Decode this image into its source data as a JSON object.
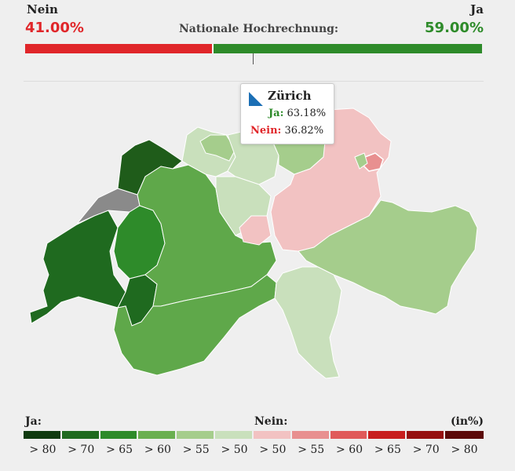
{
  "header": {
    "left_label": "Nein",
    "right_label": "Ja",
    "nein_pct": "41.00%",
    "ja_pct": "59.00%",
    "title": "Nationale Hochrechnung:"
  },
  "result": {
    "nein_share": 0.41,
    "ja_share": 0.59
  },
  "tooltip": {
    "name": "Zürich",
    "ja_label": "Ja:",
    "ja_value": "63.18%",
    "nein_label": "Nein:",
    "nein_value": "36.82%"
  },
  "legend": {
    "ja_label": "Ja:",
    "nein_label": "Nein:",
    "unit_label": "(in%)",
    "items": [
      {
        "label": "> 80",
        "color": "#0f3a0f"
      },
      {
        "label": "> 70",
        "color": "#1f6a1f"
      },
      {
        "label": "> 65",
        "color": "#2e8b2a"
      },
      {
        "label": "> 60",
        "color": "#6aaf50"
      },
      {
        "label": "> 55",
        "color": "#a5cd8c"
      },
      {
        "label": "> 50",
        "color": "#c9e0bc"
      },
      {
        "label": "> 50",
        "color": "#f2c2c2"
      },
      {
        "label": "> 55",
        "color": "#e89090"
      },
      {
        "label": "> 60",
        "color": "#e05a5a"
      },
      {
        "label": "> 65",
        "color": "#c81e1e"
      },
      {
        "label": "> 70",
        "color": "#961010"
      },
      {
        "label": "> 80",
        "color": "#5c0a0a"
      }
    ]
  },
  "colors": {
    "ja_accent": "#2e8b2a",
    "nein_accent": "#e0262a",
    "no_data": "#8a8a8a"
  }
}
